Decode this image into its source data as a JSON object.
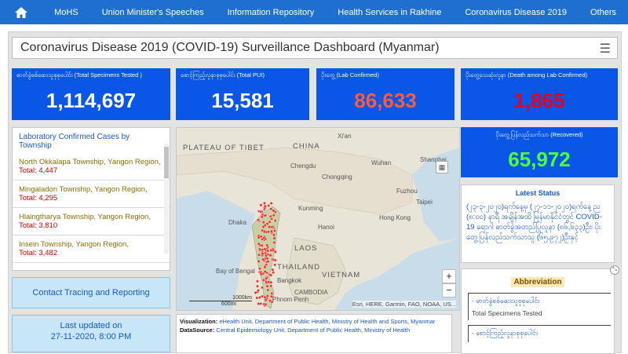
{
  "nav": {
    "items": [
      "MoHS",
      "Union Minister's Speeches",
      "Information Repository",
      "Health Services in Rakhine",
      "Coronavirus Disease 2019",
      "Others"
    ],
    "color": "#1e6fd0"
  },
  "dashboard": {
    "title": "Coronavirus Disease 2019 (COVID-19) Surveillance Dashboard (Myanmar)"
  },
  "stats": {
    "tested": {
      "label": "ဓာတ်ခွဲစစ်ဆေးသူစုစုပေါင်း (Total Specimens Tested )",
      "value": "1,114,697",
      "color": "#ffffff"
    },
    "pui": {
      "label": "စောင့်ကြည့်လူနာစုစုပေါင်း (Total PUI)",
      "value": "15,581",
      "color": "#ffffff"
    },
    "confirmed": {
      "label": "ပိုးတွေ့ (Lab Confirmed)",
      "value": "86,633",
      "color": "#ff5a3c"
    },
    "deaths": {
      "label": "ပိုးတွေ့သေဆုံးလူနာ (Death among Lab Confirmed)",
      "value": "1,865",
      "color": "#e8001c"
    },
    "recovered": {
      "label": "ပိုးတွေ့ပြန်လည်သက်သာ (Recovered)",
      "value": "65,972",
      "color": "#4cff3a"
    }
  },
  "township": {
    "title": "Laboratory Confirmed Cases by Township",
    "items": [
      {
        "name": "North Okkalapa Township, Yangon Region,",
        "total": "Total: 4,447"
      },
      {
        "name": "Mingaladon Township, Yangon Region,",
        "total": "Total: 4,295"
      },
      {
        "name": "Hlaingtharya Township, Yangon Region,",
        "total": "Total: 3,810"
      },
      {
        "name": "Insein Township, Yangon Region,",
        "total": "Total: 3,482"
      }
    ]
  },
  "contact_tracing": "Contact Tracing and Reporting",
  "last_updated": {
    "line1": "Last updated on",
    "line2": "27-11-2020, 8:00 PM"
  },
  "map": {
    "labels": {
      "plateau": "PLATEAU OF TIBET",
      "china": "CHINA",
      "xian": "Xi'an",
      "chengdu": "Chengdu",
      "chongqing": "Chongqing",
      "wuhan": "Wuhan",
      "shanghai": "Shanghai",
      "taipei": "Taipei",
      "fuzhou": "Fuzhou",
      "dhaka": "Dhaka",
      "kunming": "Kunming",
      "hanoi": "Hanoi",
      "hongkong": "Hong Kong",
      "laos": "LAOS",
      "thailand": "THAILAND",
      "vietnam": "VIETNAM",
      "bangkok": "Bangkok",
      "cambodia": "CAMBODIA",
      "phnompenh": "Phnom Penh",
      "bay": "Bay of Bengal"
    },
    "scale_km": "1000km",
    "scale_mi": "600mi",
    "attribution": "Esri, HERE, Garmin, FAO, NOAA, US...",
    "zoom_in": "+",
    "zoom_out": "−"
  },
  "visualization": {
    "viz_label": "Visualization:",
    "viz_value": "eHealth Unit, Department of Public Health, Ministry of Health and Sports, Myanmar",
    "ds_label": "DataSource:",
    "ds_value": "Central Epidemiology Unit, Department of Public Health, Ministry of Health"
  },
  "latest": {
    "title": "Latest Status",
    "body": "(၂၃-၃-၂၀၂၀)ရက်နေ့မှ (၂၇-၁၁-၂၀၂၀)ရက်နေ့ ည (၈:၀၀) နာရီ အချိန်အထိ မြန်မာနိုင်ငံတွင် COVID-19 ရောဂါ ဓာတ်ခွဲအတည်ပြုလူနာ (၈၆,၆၃၃)ဦး၊ ပိုးတွေ့ပြန်လည်သက်သာသူ (၆၅,၉၇၂)ဦးနှင့်"
  },
  "abbreviation": {
    "title": "Abbreviation",
    "items": [
      {
        "mm": "- ဓာတ်ခွဲစစ်ဆေးသူစုစုပေါင်း",
        "en": "Total Specimens Tested"
      },
      {
        "mm": "- စောင့်ကြည့်လူနာစုစုပေါင်း",
        "en": ""
      }
    ]
  }
}
